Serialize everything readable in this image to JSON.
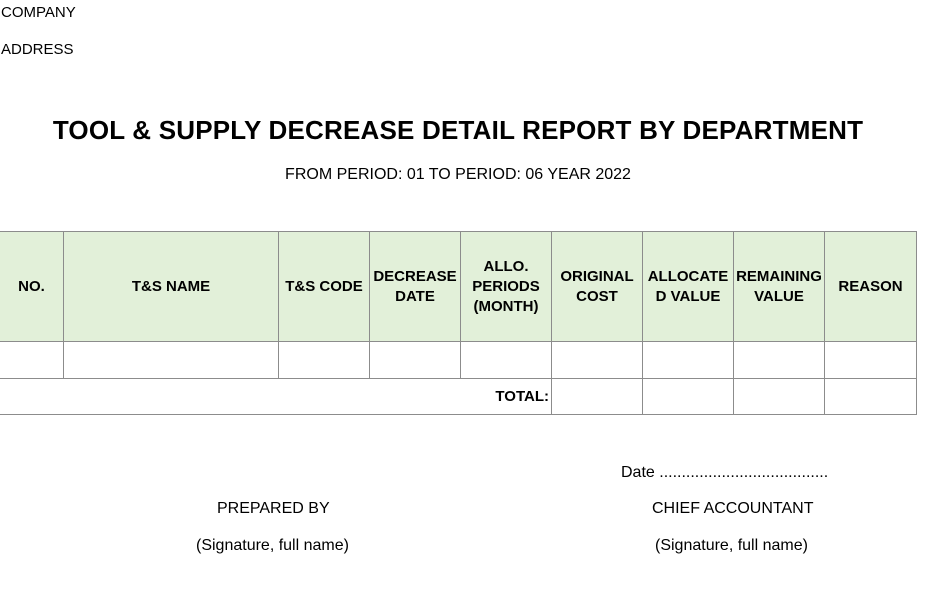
{
  "header": {
    "company": "COMPANY",
    "address": "ADDRESS"
  },
  "report": {
    "title": "TOOL & SUPPLY DECREASE DETAIL REPORT BY DEPARTMENT",
    "period": "FROM PERIOD: 01 TO PERIOD: 06 YEAR 2022"
  },
  "table": {
    "columns": {
      "no": "NO.",
      "name": "T&S NAME",
      "code": "T&S CODE",
      "decrease_date": "DECREASE DATE",
      "allo_periods": "ALLO. PERIODS (MONTH)",
      "original_cost": "ORIGINAL COST",
      "allocated_value": "ALLOCATE D VALUE",
      "remaining_value": "REMAINING VALUE",
      "reason": "REASON"
    },
    "total_label": "TOTAL:",
    "header_color": "#e2f0d9"
  },
  "footer": {
    "date_line": "Date ......................................",
    "prepared_by": "PREPARED BY",
    "chief_accountant": "CHIEF ACCOUNTANT",
    "signature_left": "(Signature, full name)",
    "signature_right": "(Signature, full name)"
  }
}
